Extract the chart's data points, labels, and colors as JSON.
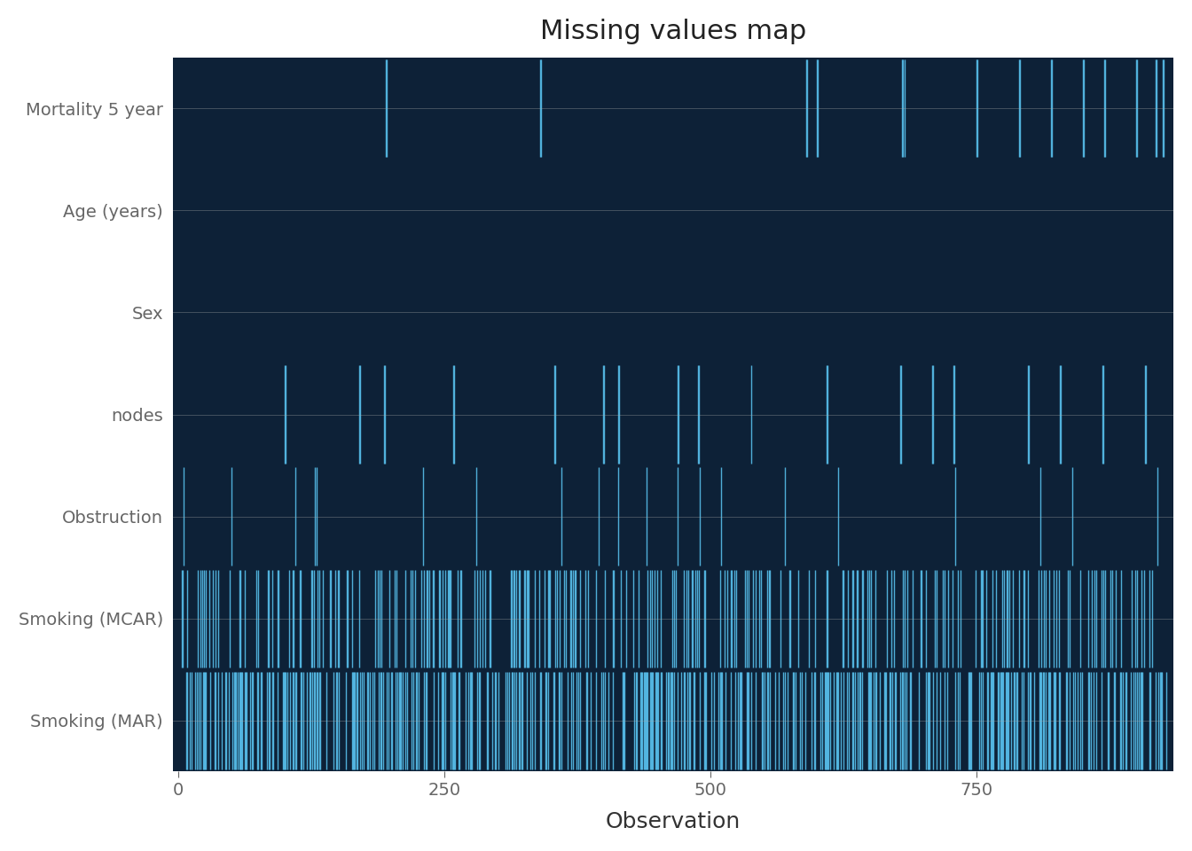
{
  "title": "Missing values map",
  "xlabel": "Observation",
  "n_obs": 929,
  "variables": [
    "Mortality 5 year",
    "Age (years)",
    "Sex",
    "nodes",
    "Obstruction",
    "Smoking (MCAR)",
    "Smoking (MAR)"
  ],
  "background_color": "#0d2137",
  "line_color": "#5bc8f5",
  "fig_bg": "#ffffff",
  "title_fontsize": 22,
  "axis_label_fontsize": 18,
  "tick_fontsize": 14,
  "ylim": [
    -0.5,
    6.5
  ],
  "xlim": [
    -5,
    935
  ],
  "mortality_missing": [
    195,
    196,
    340,
    341,
    590,
    591,
    600,
    601,
    680,
    681,
    682,
    750,
    751,
    790,
    791,
    820,
    821,
    850,
    851,
    870,
    871,
    900,
    901,
    918,
    919,
    925,
    926
  ],
  "nodes_missing": [
    100,
    101,
    170,
    171,
    193,
    194,
    258,
    259,
    353,
    354,
    399,
    400,
    413,
    414,
    469,
    470,
    488,
    489,
    538,
    609,
    610,
    678,
    679,
    708,
    709,
    728,
    729,
    798,
    799,
    828,
    829,
    868,
    869,
    908,
    909
  ],
  "obstruction_missing": [
    5,
    50,
    110,
    128,
    130,
    230,
    280,
    360,
    395,
    413,
    440,
    469,
    490,
    510,
    570,
    620,
    730,
    810,
    840,
    920
  ],
  "mcar_seed": 77,
  "mcar_rate": 0.25,
  "mar_seed": 88,
  "mar_rate": 0.45
}
